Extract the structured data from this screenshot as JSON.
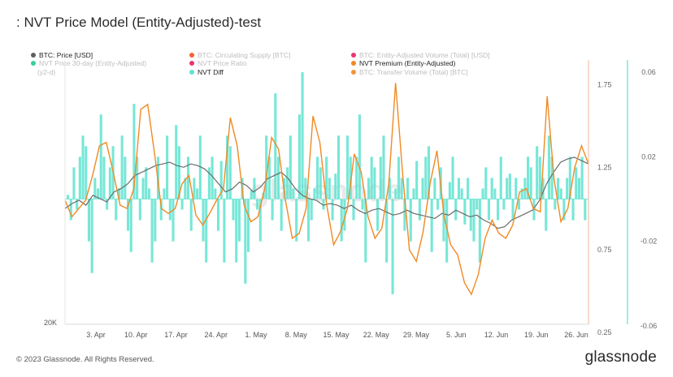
{
  "title": ": NVT Price Model (Entity-Adjusted)-test",
  "footer": {
    "copyright": "© 2023 Glassnode. All Rights Reserved.",
    "brand": "glassnode"
  },
  "watermark": "glassnode",
  "legend": [
    {
      "label": "BTC: Price [USD]",
      "color": "#5f5f5f",
      "faded": false
    },
    {
      "label": "BTC: Circulating Supply [BTC]",
      "color": "#f4511e",
      "faded": true
    },
    {
      "label": "BTC: Entity-Adjusted Volume (Total) [USD]",
      "color": "#e91e63",
      "faded": true
    },
    {
      "label": "NVT Price 30-day (Entity-Adjusted)",
      "color": "#20c997",
      "faded": true
    },
    {
      "label": "NVT Price Ratio",
      "color": "#e91e63",
      "faded": true
    },
    {
      "label": "NVT Premium (Entity-Adjusted)",
      "color": "#f08a24",
      "faded": false
    },
    {
      "label": "NVT Diff",
      "color": "#5fe3d0",
      "faded": false
    },
    {
      "label": "BTC: Transfer Volume (Total) [BTC]",
      "color": "#f08a24",
      "faded": true
    }
  ],
  "legend_extra": "(y2-d)",
  "chart_data": {
    "type": "line",
    "x_tick_labels": [
      "3. Apr",
      "10. Apr",
      "17. Apr",
      "24. Apr",
      "1. May",
      "8. May",
      "15. May",
      "22. May",
      "29. May",
      "5. Jun",
      "12. Jun",
      "19. Jun",
      "26. Jun"
    ],
    "left_axis": {
      "ticks": [
        "20K"
      ]
    },
    "right_axis_1": {
      "ticks": [
        "1.75",
        "1.25",
        "0.75",
        "0.25"
      ],
      "range": [
        0.25,
        1.85
      ]
    },
    "right_axis_2": {
      "ticks": [
        "0.06",
        "0.02",
        "-0.02",
        "-0.06"
      ],
      "range": [
        -0.06,
        0.065
      ]
    },
    "series": [
      {
        "name": "BTC: Price [USD]",
        "axis": "left",
        "color": "#6b6b6b",
        "values": [
          1.0,
          1.03,
          1.05,
          1.02,
          1.08,
          1.06,
          1.04,
          1.1,
          1.12,
          1.15,
          1.2,
          1.22,
          1.24,
          1.26,
          1.27,
          1.28,
          1.26,
          1.25,
          1.27,
          1.26,
          1.24,
          1.2,
          1.15,
          1.1,
          1.12,
          1.16,
          1.14,
          1.1,
          1.13,
          1.18,
          1.2,
          1.22,
          1.18,
          1.12,
          1.08,
          1.06,
          1.05,
          1.02,
          1.03,
          1.02,
          1.0,
          1.02,
          0.99,
          0.97,
          0.99,
          1.0,
          0.98,
          0.96,
          0.97,
          0.99,
          0.97,
          0.96,
          0.95,
          0.94,
          0.97,
          0.96,
          0.99,
          0.97,
          0.95,
          0.96,
          0.93,
          0.91,
          0.88,
          0.89,
          0.93,
          0.95,
          0.97,
          0.99,
          1.05,
          1.15,
          1.22,
          1.28,
          1.3,
          1.31,
          1.29,
          1.27
        ]
      },
      {
        "name": "NVT Premium (Entity-Adjusted)",
        "axis": "right1",
        "color": "#f08a24",
        "values": [
          1.05,
          0.95,
          1.0,
          1.05,
          1.2,
          1.38,
          1.4,
          1.22,
          1.02,
          1.0,
          1.12,
          1.6,
          1.63,
          1.33,
          1.0,
          0.97,
          1.0,
          1.15,
          1.2,
          0.96,
          0.9,
          0.97,
          1.05,
          1.12,
          1.55,
          1.38,
          1.02,
          0.92,
          0.95,
          1.12,
          1.43,
          1.36,
          1.05,
          0.82,
          0.85,
          1.0,
          1.56,
          1.4,
          1.02,
          0.78,
          0.86,
          1.0,
          1.33,
          1.22,
          0.95,
          0.82,
          0.88,
          1.15,
          1.76,
          1.22,
          0.75,
          0.68,
          0.86,
          1.15,
          1.35,
          0.96,
          0.78,
          0.72,
          0.55,
          0.48,
          0.6,
          0.82,
          0.93,
          0.85,
          0.82,
          0.9,
          1.1,
          1.12,
          1.0,
          0.98,
          1.68,
          1.18,
          0.92,
          1.0,
          1.25,
          1.38,
          1.27
        ]
      }
    ],
    "diff_series": {
      "name": "NVT Diff",
      "axis": "right2",
      "color": "#5fe3d0",
      "values": [
        0.002,
        -0.01,
        0.015,
        -0.005,
        0.02,
        0.03,
        0.025,
        -0.02,
        -0.035,
        0.01,
        0.005,
        0.04,
        0.02,
        -0.005,
        0.015,
        0.025,
        -0.01,
        0.005,
        0.03,
        0.02,
        -0.015,
        -0.025,
        0.045,
        0.02,
        -0.01,
        0.01,
        0.015,
        0.005,
        -0.03,
        -0.02,
        0.02,
        -0.01,
        0.005,
        0.03,
        -0.01,
        -0.02,
        0.035,
        0.025,
        -0.005,
        0.01,
        0.02,
        -0.015,
        0.01,
        0.005,
        0.03,
        -0.02,
        -0.03,
        0.015,
        0.02,
        0.005,
        -0.015,
        0.018,
        -0.03,
        0.03,
        0.025,
        -0.01,
        -0.03,
        -0.02,
        0.01,
        -0.04,
        -0.025,
        0.004,
        0.01,
        -0.005,
        -0.02,
        0.003,
        0.03,
        0.02,
        -0.01,
        0.05,
        0.02,
        -0.015,
        0.01,
        0.015,
        0.03,
        0.005,
        -0.02,
        0.04,
        0.06,
        0.01,
        -0.02,
        -0.01,
        0.005,
        0.02,
        0.015,
        -0.005,
        0.02,
        0.01,
        -0.01,
        0.012,
        0.03,
        -0.02,
        -0.015,
        0.03,
        0.02,
        -0.01,
        0.02,
        0.04,
        -0.005,
        -0.03,
        0.01,
        0.02,
        0.015,
        -0.015,
        0.02,
        0.03,
        -0.03,
        0.01,
        -0.045,
        0.005,
        0.02,
        0.01,
        -0.015,
        0.01,
        -0.02,
        0.005,
        0.018,
        -0.01,
        0.01,
        0.02,
        0.025,
        -0.025,
        0.01,
        -0.005,
        0.015,
        -0.02,
        -0.03,
        0.008,
        0.02,
        -0.01,
        0.01,
        0.005,
        -0.012,
        0.01,
        -0.015,
        -0.02,
        -0.005,
        -0.03,
        0.005,
        0.015,
        -0.01,
        0.01,
        0.005,
        -0.01,
        0.02,
        -0.005,
        0.01,
        0.012,
        -0.01,
        0.01,
        -0.005,
        0.005,
        0.01,
        0.02,
        0.015,
        -0.01,
        0.025,
        0.02,
        0.01,
        -0.015,
        0.03,
        0.02,
        -0.005,
        0.01,
        0.005,
        -0.01,
        0.01,
        0.02,
        -0.01,
        0.015,
        0.01,
        0.02,
        -0.01
      ]
    }
  }
}
